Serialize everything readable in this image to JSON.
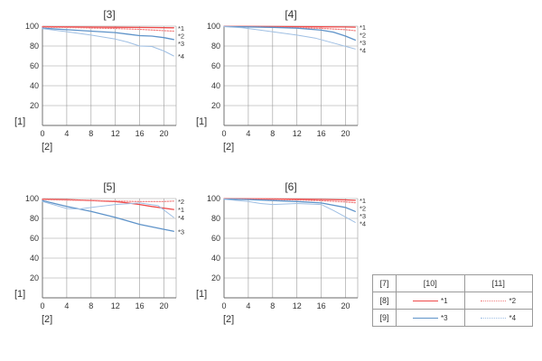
{
  "colors": {
    "s1": "#ef4a4a",
    "s2": "#f07e7e",
    "s3": "#5e93c9",
    "s4": "#9fbfe3",
    "grid": "#9a9a9a",
    "text": "#333333"
  },
  "chart_data": [
    {
      "type": "line",
      "title": "[3]",
      "ylabel": "[1]",
      "xlabel": "[2]",
      "xlim": [
        0,
        22
      ],
      "ylim": [
        0,
        100
      ],
      "xticks": [
        "0",
        "4",
        "8",
        "12",
        "16",
        "20"
      ],
      "yticks": [
        "100",
        "80",
        "60",
        "40",
        "20"
      ],
      "grid": true,
      "series": [
        {
          "name": "*1",
          "style": "s1",
          "x": [
            0,
            4,
            8,
            12,
            16,
            20,
            21.6
          ],
          "y": [
            99.5,
            99.3,
            99.1,
            98.9,
            98.7,
            98.5,
            98.4
          ]
        },
        {
          "name": "*2",
          "style": "s2",
          "x": [
            0,
            4,
            8,
            12,
            16,
            20,
            21.6
          ],
          "y": [
            99.0,
            98.7,
            98.2,
            97.6,
            96.8,
            95.5,
            95.0
          ]
        },
        {
          "name": "*3",
          "style": "s3",
          "x": [
            0,
            4,
            8,
            12,
            14,
            16,
            18,
            20,
            21.6
          ],
          "y": [
            98.0,
            96.5,
            95.0,
            93.5,
            92.0,
            90.5,
            90.0,
            88.5,
            86.5
          ]
        },
        {
          "name": "*4",
          "style": "s4",
          "x": [
            0,
            4,
            8,
            12,
            14,
            16,
            18,
            20,
            21.6
          ],
          "y": [
            97.5,
            94.5,
            91.0,
            87.0,
            84.0,
            80.0,
            79.5,
            75.0,
            70.0
          ]
        }
      ],
      "end_labels": [
        "*1",
        "*2",
        "*3",
        "*4"
      ]
    },
    {
      "type": "line",
      "title": "[4]",
      "ylabel": "[1]",
      "xlabel": "[2]",
      "xlim": [
        0,
        22
      ],
      "ylim": [
        0,
        100
      ],
      "xticks": [
        "0",
        "4",
        "8",
        "12",
        "16",
        "20"
      ],
      "yticks": [
        "100",
        "80",
        "60",
        "40",
        "20"
      ],
      "grid": true,
      "series": [
        {
          "name": "*1",
          "style": "s1",
          "x": [
            0,
            4,
            8,
            12,
            16,
            20,
            21.6
          ],
          "y": [
            99.8,
            99.7,
            99.6,
            99.5,
            99.4,
            99.2,
            99.0
          ]
        },
        {
          "name": "*2",
          "style": "s2",
          "x": [
            0,
            4,
            8,
            12,
            16,
            20,
            21.6
          ],
          "y": [
            99.6,
            99.4,
            99.0,
            98.5,
            97.8,
            96.5,
            95.5
          ]
        },
        {
          "name": "*3",
          "style": "s3",
          "x": [
            0,
            4,
            8,
            12,
            16,
            18,
            20,
            21.6
          ],
          "y": [
            99.6,
            99.3,
            98.8,
            98.0,
            96.0,
            94.0,
            90.0,
            86.0
          ]
        },
        {
          "name": "*4",
          "style": "s4",
          "x": [
            0,
            3,
            6,
            9,
            12,
            15,
            18,
            21.6
          ],
          "y": [
            99.5,
            98.5,
            96.0,
            93.5,
            91.0,
            88.0,
            83.0,
            77.0
          ]
        }
      ],
      "end_labels": [
        "*1",
        "*2",
        "*3",
        "*4"
      ]
    },
    {
      "type": "line",
      "title": "[5]",
      "ylabel": "[1]",
      "xlabel": "[2]",
      "xlim": [
        0,
        22
      ],
      "ylim": [
        0,
        100
      ],
      "xticks": [
        "0",
        "4",
        "8",
        "12",
        "16",
        "20"
      ],
      "yticks": [
        "100",
        "80",
        "60",
        "40",
        "20"
      ],
      "grid": true,
      "series": [
        {
          "name": "*1",
          "style": "s1",
          "x": [
            0,
            4,
            8,
            12,
            14,
            16,
            18,
            21.6
          ],
          "y": [
            99.5,
            99.0,
            98.0,
            97.0,
            95.5,
            94.0,
            92.0,
            89.0
          ]
        },
        {
          "name": "*2",
          "style": "s2",
          "x": [
            0,
            4,
            8,
            12,
            16,
            20,
            21.6
          ],
          "y": [
            99.0,
            98.5,
            98.0,
            97.5,
            97.0,
            97.0,
            97.5
          ]
        },
        {
          "name": "*3",
          "style": "s3",
          "x": [
            0,
            4,
            8,
            12,
            16,
            20,
            21.6
          ],
          "y": [
            98.0,
            92.0,
            87.0,
            81.0,
            74.0,
            69.0,
            67.0
          ]
        },
        {
          "name": "*4",
          "style": "s4",
          "x": [
            0,
            4,
            6,
            8,
            12,
            16,
            19,
            21.6
          ],
          "y": [
            97.0,
            90.0,
            89.5,
            91.0,
            94.0,
            95.5,
            93.0,
            81.0
          ]
        }
      ],
      "end_labels": [
        "*2",
        "*1",
        "*4",
        "*3"
      ]
    },
    {
      "type": "line",
      "title": "[6]",
      "ylabel": "[1]",
      "xlabel": "[2]",
      "xlim": [
        0,
        22
      ],
      "ylim": [
        0,
        100
      ],
      "xticks": [
        "0",
        "4",
        "8",
        "12",
        "16",
        "20"
      ],
      "yticks": [
        "100",
        "80",
        "60",
        "40",
        "20"
      ],
      "grid": true,
      "series": [
        {
          "name": "*1",
          "style": "s1",
          "x": [
            0,
            4,
            8,
            12,
            16,
            20,
            21.6
          ],
          "y": [
            99.8,
            99.7,
            99.6,
            99.4,
            99.1,
            98.6,
            98.2
          ]
        },
        {
          "name": "*2",
          "style": "s2",
          "x": [
            0,
            4,
            8,
            12,
            16,
            20,
            21.6
          ],
          "y": [
            99.6,
            99.4,
            99.1,
            98.6,
            97.8,
            96.6,
            95.8
          ]
        },
        {
          "name": "*3",
          "style": "s3",
          "x": [
            0,
            4,
            8,
            12,
            16,
            20,
            21.6
          ],
          "y": [
            99.5,
            99.0,
            98.0,
            97.0,
            95.5,
            91.0,
            87.0
          ]
        },
        {
          "name": "*4",
          "style": "s4",
          "x": [
            0,
            4,
            6,
            8,
            12,
            16,
            18,
            21.6
          ],
          "y": [
            99.3,
            97.0,
            95.0,
            94.0,
            95.0,
            94.0,
            88.0,
            76.0
          ]
        }
      ],
      "end_labels": [
        "*1",
        "*2",
        "*3",
        "*4"
      ]
    }
  ],
  "legend": {
    "header": [
      "[7]",
      "[10]",
      "[11]"
    ],
    "rows": [
      {
        "label": "[8]",
        "items": [
          {
            "name": "*1",
            "style": "s1"
          },
          {
            "name": "*2",
            "style": "s2"
          }
        ]
      },
      {
        "label": "[9]",
        "items": [
          {
            "name": "*3",
            "style": "s3"
          },
          {
            "name": "*4",
            "style": "s4"
          }
        ]
      }
    ]
  }
}
